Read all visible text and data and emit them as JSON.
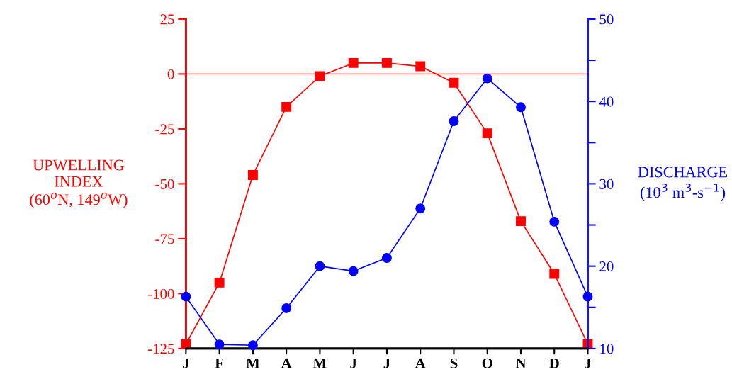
{
  "chart_data": {
    "type": "line",
    "categories": [
      "J",
      "F",
      "M",
      "A",
      "M",
      "J",
      "J",
      "A",
      "S",
      "O",
      "N",
      "D",
      "J"
    ],
    "ylabel": "UPWELLING\nINDEX\n(60$^{o}$N, 149$^{o}$W)",
    "y2label": "DISCHARGE\n(10$^{3}$ m$^{3}$-s$^{−1}$)",
    "series": [
      {
        "color": "#ff0000",
        "marker": "square",
        "values": [
          -123,
          -95,
          -46,
          -15,
          -1,
          5,
          5,
          3.5,
          -4,
          -27,
          -67,
          -91,
          -123
        ]
      },
      {
        "color": "#0000ff",
        "marker": "circle",
        "axis": "y2",
        "values": [
          16.3,
          10.5,
          10.4,
          14.9,
          20,
          19.4,
          21,
          27,
          37.6,
          42.8,
          39.3,
          25.4,
          16.3
        ]
      }
    ],
    "ylim": [
      -125,
      25
    ],
    "yticks": [
      -125,
      -100,
      -75,
      -50,
      -25,
      0,
      25
    ],
    "y2lim": [
      10,
      50
    ],
    "y2ticks": [
      10,
      {
        "value": 15,
        "label": null
      },
      20,
      {
        "value": 25,
        "label": null
      },
      30,
      {
        "value": 35,
        "label": null
      },
      40,
      {
        "value": 45,
        "label": null
      },
      50
    ],
    "ref_lines": [
      {
        "axis": "y",
        "value": 0,
        "color": "#ff0000"
      }
    ],
    "grid": false,
    "legend": false,
    "line_style": "solid"
  }
}
